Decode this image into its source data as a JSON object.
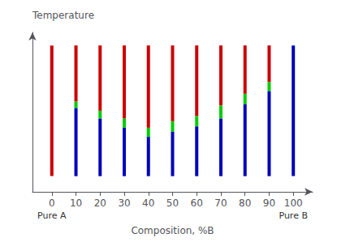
{
  "chart_data": {
    "type": "bar",
    "xlabel": "Composition, %B",
    "ylabel": "Temperature",
    "annotations": [
      "Pure A",
      "Pure B"
    ],
    "x": [
      0,
      10,
      20,
      30,
      40,
      50,
      60,
      70,
      80,
      90,
      100
    ],
    "series": [
      {
        "color": "#cc0000",
        "low": [
          0.0,
          0.57,
          0.5,
          0.44,
          0.37,
          0.42,
          0.46,
          0.54,
          0.63,
          0.72,
          null
        ],
        "high": [
          1.0,
          1.0,
          1.0,
          1.0,
          1.0,
          1.0,
          1.0,
          1.0,
          1.0,
          1.0,
          null
        ]
      },
      {
        "color": "#00cc00",
        "low": [
          null,
          0.52,
          0.44,
          0.37,
          0.3,
          0.34,
          0.38,
          0.44,
          0.55,
          0.65,
          null
        ],
        "high": [
          null,
          0.57,
          0.5,
          0.44,
          0.37,
          0.42,
          0.46,
          0.54,
          0.63,
          0.72,
          null
        ]
      },
      {
        "color": "#0000bb",
        "low": [
          null,
          0.0,
          0.0,
          0.0,
          0.0,
          0.0,
          0.0,
          0.0,
          0.0,
          0.0,
          0.0
        ],
        "high": [
          null,
          0.52,
          0.44,
          0.37,
          0.3,
          0.34,
          0.38,
          0.44,
          0.55,
          0.65,
          1.0
        ]
      }
    ],
    "xlim": [
      -8,
      108
    ],
    "xticks": [
      0,
      10,
      20,
      30,
      40,
      50,
      60,
      70,
      80,
      90,
      100
    ],
    "ylim": [
      -0.12,
      1.1
    ],
    "tick_labels": "x",
    "grid": false
  }
}
